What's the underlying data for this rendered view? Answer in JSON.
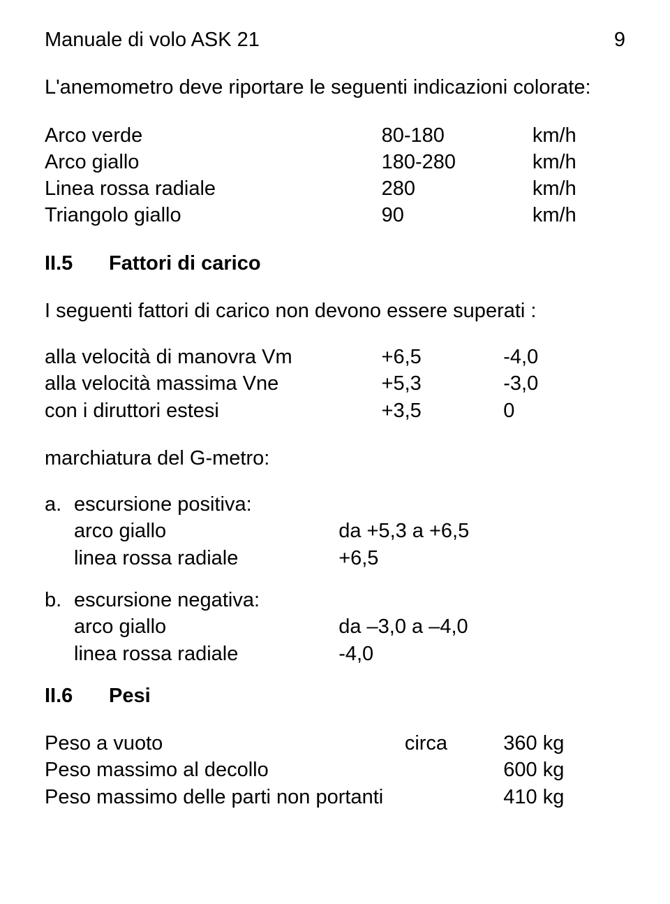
{
  "header": {
    "title": "Manuale di volo ASK 21",
    "page_number": "9"
  },
  "intro": "L'anemometro deve riportare le seguenti indicazioni colorate:",
  "airspeed_table": {
    "rows": [
      {
        "label": "Arco verde",
        "value": "80-180",
        "unit": "km/h"
      },
      {
        "label": "Arco giallo",
        "value": "180-280",
        "unit": "km/h"
      },
      {
        "label": "Linea rossa radiale",
        "value": "280",
        "unit": "km/h"
      },
      {
        "label": "Triangolo giallo",
        "value": "90",
        "unit": "km/h"
      }
    ]
  },
  "section5": {
    "num": "II.5",
    "title": "Fattori di carico",
    "para": "I seguenti fattori di carico non devono essere superati :",
    "table": {
      "rows": [
        {
          "label": "alla velocità di manovra Vm",
          "v1": "+6,5",
          "v2": "-4,0"
        },
        {
          "label": "alla velocità massima Vne",
          "v1": "+5,3",
          "v2": "-3,0"
        },
        {
          "label": "con i diruttori estesi",
          "v1": "+3,5",
          "v2": "0"
        }
      ]
    },
    "gmeter_heading": "marchiatura del G-metro:",
    "items": [
      {
        "letter": "a.",
        "title": "escursione positiva:",
        "lines": [
          {
            "label": "arco giallo",
            "value": "da +5,3 a +6,5"
          },
          {
            "label": "linea rossa radiale",
            "value": "+6,5"
          }
        ]
      },
      {
        "letter": "b.",
        "title": "escursione negativa:",
        "lines": [
          {
            "label": "arco giallo",
            "value": "da –3,0 a –4,0"
          },
          {
            "label": "linea rossa radiale",
            "value": "-4,0"
          }
        ]
      }
    ]
  },
  "section6": {
    "num": "II.6",
    "title": "Pesi",
    "table": {
      "rows": [
        {
          "label": "Peso a vuoto",
          "mid": "circa",
          "value": "360 kg"
        },
        {
          "label": "Peso massimo al decollo",
          "mid": "",
          "value": "600 kg"
        },
        {
          "label": "Peso massimo delle parti non portanti",
          "mid": "",
          "value": "410 kg"
        }
      ]
    }
  }
}
